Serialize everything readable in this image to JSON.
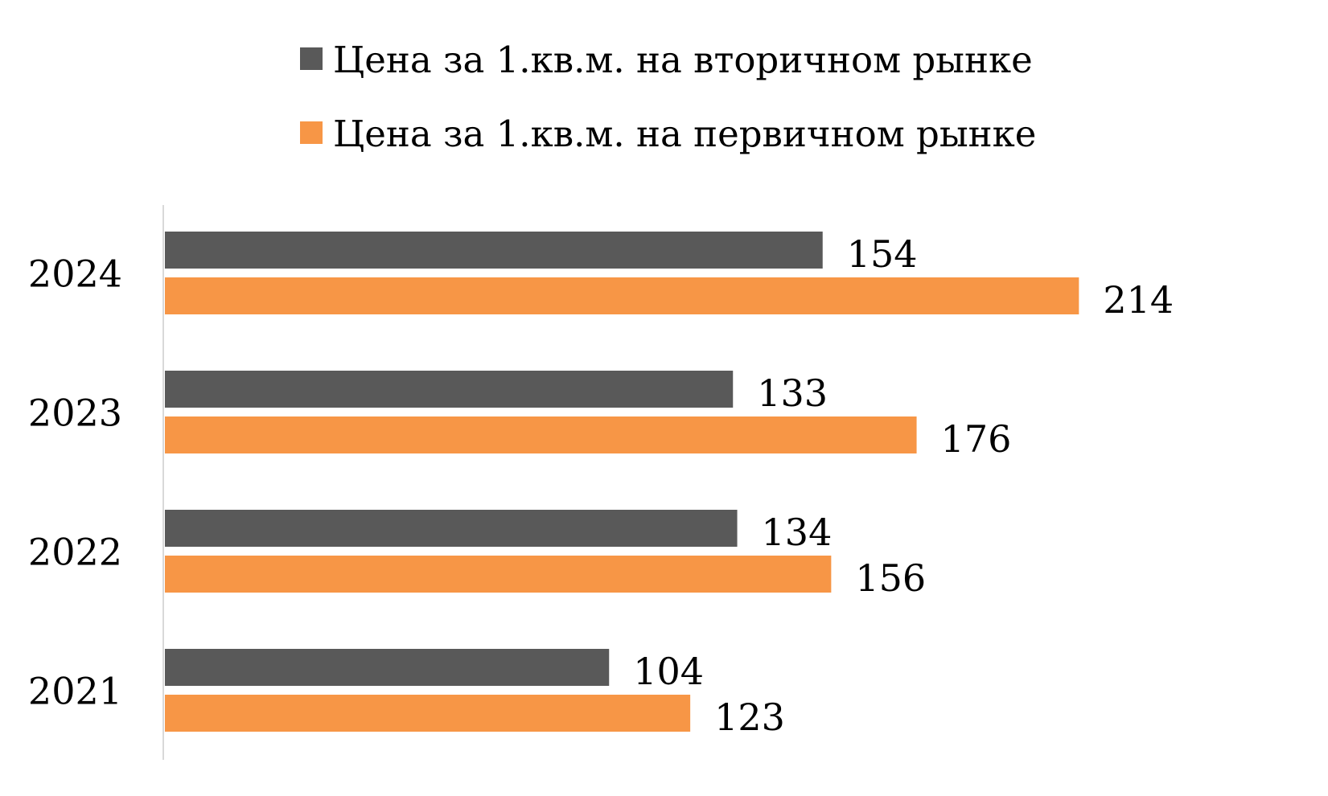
{
  "chart_data": {
    "type": "bar",
    "orientation": "horizontal",
    "categories": [
      "2024",
      "2023",
      "2022",
      "2021"
    ],
    "series": [
      {
        "name": "Цена за 1.кв.м. на вторичном рынке",
        "color": "#595959",
        "values": [
          154,
          133,
          134,
          104
        ]
      },
      {
        "name": "Цена за 1.кв.м. на первичном рынке",
        "color": "#F79646",
        "values": [
          214,
          176,
          156,
          123
        ]
      }
    ],
    "xlim": [
      0,
      250
    ],
    "grid": false,
    "legend_position": "top",
    "data_labels": true,
    "value_axis_visible": false
  }
}
